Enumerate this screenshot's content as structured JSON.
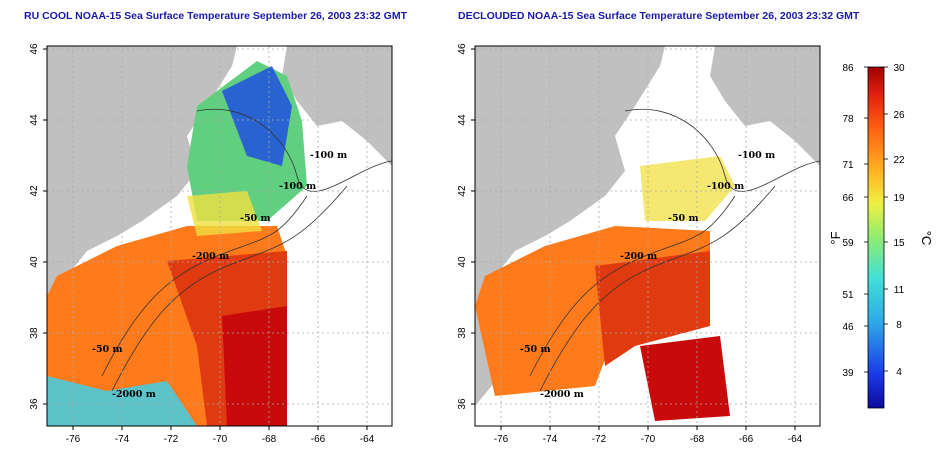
{
  "titles": {
    "left": "RU COOL NOAA-15 Sea Surface Temperature September 26, 2003 23:32 GMT",
    "right": "DECLOUDED NOAA-15 Sea Surface Temperature September 26, 2003 23:32 GMT"
  },
  "axes": {
    "x_ticks": [
      "-76",
      "-74",
      "-72",
      "-70",
      "-68",
      "-66",
      "-64"
    ],
    "y_ticks": [
      "46",
      "44",
      "42",
      "40",
      "38",
      "36"
    ]
  },
  "contour_labels": [
    "-100 m",
    "-100 m",
    "-50 m",
    "-200 m",
    "-50 m",
    "-2000 m"
  ],
  "colorbar": {
    "f_ticks": [
      "86",
      "78",
      "71",
      "66",
      "59",
      "51",
      "46",
      "39"
    ],
    "c_ticks": [
      "30",
      "26",
      "22",
      "19",
      "15",
      "11",
      "8",
      "4"
    ],
    "f_unit": "°F",
    "c_unit": "°C"
  },
  "colors": {
    "land": "#c0c0c0",
    "grid": "#aaaaaa",
    "title": "#1a1aa8",
    "warm": "#e03a10",
    "hot": "#c80a0a",
    "orange": "#ff7a1a",
    "yellow": "#f0e040",
    "green": "#60d080",
    "cyan": "#40d0e8",
    "blue": "#2050e0"
  }
}
